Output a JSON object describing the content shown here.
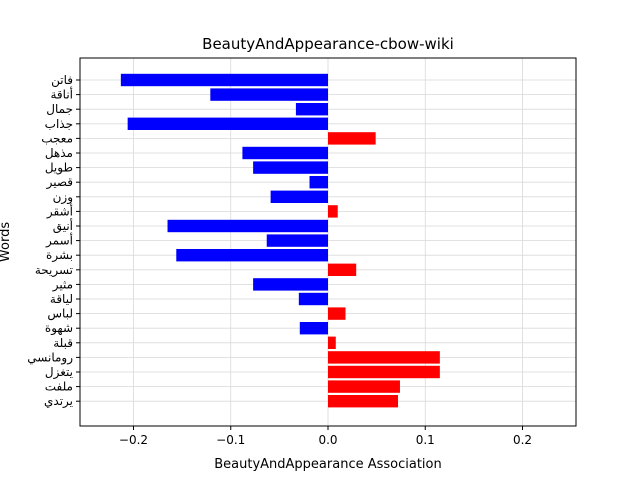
{
  "chart_data": {
    "type": "bar",
    "orientation": "horizontal",
    "title": "BeautyAndAppearance-cbow-wiki",
    "xlabel": "BeautyAndAppearance Association",
    "ylabel": "Words",
    "xlim": [
      -0.255,
      0.255
    ],
    "xticks": [
      -0.2,
      -0.1,
      0.0,
      0.1,
      0.2
    ],
    "xtick_labels": [
      "−0.2",
      "−0.1",
      "0.0",
      "0.1",
      "0.2"
    ],
    "grid": true,
    "categories": [
      "فاتن",
      "أناقة",
      "جمال",
      "جذاب",
      "معجب",
      "مذهل",
      "طويل",
      "قصير",
      "وزن",
      "أشقر",
      "أنيق",
      "أسمر",
      "بشرة",
      "تسريحة",
      "مثير",
      "لياقة",
      "لباس",
      "شهوة",
      "قبلة",
      "رومانسي",
      "يتغزل",
      "ملفت",
      "يرتدي"
    ],
    "values": [
      -0.213,
      -0.121,
      -0.033,
      -0.206,
      0.049,
      -0.088,
      -0.077,
      -0.019,
      -0.059,
      0.01,
      -0.165,
      -0.063,
      -0.156,
      0.029,
      -0.077,
      -0.03,
      0.018,
      -0.029,
      0.008,
      0.115,
      0.115,
      0.074,
      0.072
    ],
    "colors": {
      "negative": "#0000ff",
      "positive": "#ff0000"
    }
  }
}
